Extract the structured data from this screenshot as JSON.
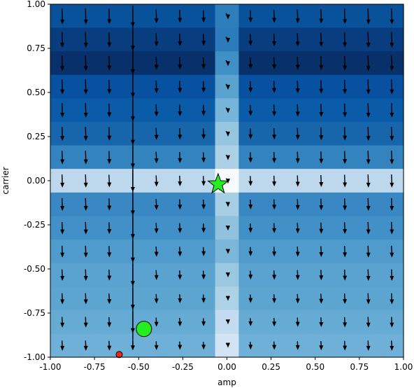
{
  "chart_data": {
    "type": "heatmap",
    "title": "",
    "xlabel": "amp",
    "ylabel": "carrier",
    "xlim": [
      -1.0,
      1.0
    ],
    "ylim": [
      -1.0,
      1.0
    ],
    "grid": false,
    "x_ticks": [
      "-1.00",
      "-0.75",
      "-0.50",
      "-0.25",
      "0.00",
      "0.25",
      "0.50",
      "0.75",
      "1.00"
    ],
    "y_ticks": [
      "-1.00",
      "-0.75",
      "-0.50",
      "-0.25",
      "0.00",
      "0.25",
      "0.50",
      "0.75",
      "1.00"
    ],
    "colormap": "Blues",
    "heatmap": {
      "x_edges": [
        -1.0,
        -0.867,
        -0.733,
        -0.6,
        -0.467,
        -0.333,
        -0.2,
        -0.067,
        0.067,
        0.2,
        0.333,
        0.467,
        0.6,
        0.733,
        0.867,
        1.0
      ],
      "y_edges": [
        1.0,
        0.867,
        0.733,
        0.6,
        0.467,
        0.333,
        0.2,
        0.067,
        -0.067,
        -0.2,
        -0.333,
        -0.467,
        -0.6,
        -0.733,
        -0.867,
        -1.0
      ],
      "row_colors": [
        "#08529c",
        "#083d7f",
        "#08306b",
        "#0851a0",
        "#0a5ba8",
        "#1765ab",
        "#3383be",
        "#bdd7ec",
        "#3a88c3",
        "#4190c8",
        "#4f9bcc",
        "#5aa2cf",
        "#5da5d1",
        "#66abd4",
        "#6fb0d8"
      ],
      "column_colors": [
        "#2e7ebc",
        "#2c7bba",
        "#4090c5",
        "#5aa3cf",
        "#77b4d9",
        "#95c5df",
        "#acd0e6",
        "#bfd8ed",
        "#a6cee4",
        "#90c2de",
        "#7cb7da",
        "#9ac8e0",
        "#add2e6",
        "#c2dbef",
        "#d2e3f3"
      ],
      "highlight_row": 7,
      "highlight_column": 7,
      "center_color": "#f7fbff"
    },
    "quiver": {
      "x": [
        -0.933,
        -0.8,
        -0.667,
        -0.533,
        -0.4,
        -0.267,
        -0.133,
        0.0,
        0.133,
        0.267,
        0.4,
        0.533,
        0.667,
        0.8,
        0.933
      ],
      "y": [
        0.933,
        0.8,
        0.667,
        0.533,
        0.4,
        0.267,
        0.133,
        0.0,
        -0.133,
        -0.267,
        -0.4,
        -0.533,
        -0.667,
        -0.8,
        -0.933
      ],
      "direction": "down",
      "tail_offset_x": 0.02
    },
    "markers": [
      {
        "shape": "star",
        "x": -0.05,
        "y": -0.02,
        "color": "#22ee22"
      },
      {
        "shape": "circle",
        "x": -0.47,
        "y": -0.84,
        "color": "#22ee22"
      },
      {
        "shape": "circle",
        "x": -0.61,
        "y": -0.985,
        "color": "#ee2222"
      }
    ]
  }
}
